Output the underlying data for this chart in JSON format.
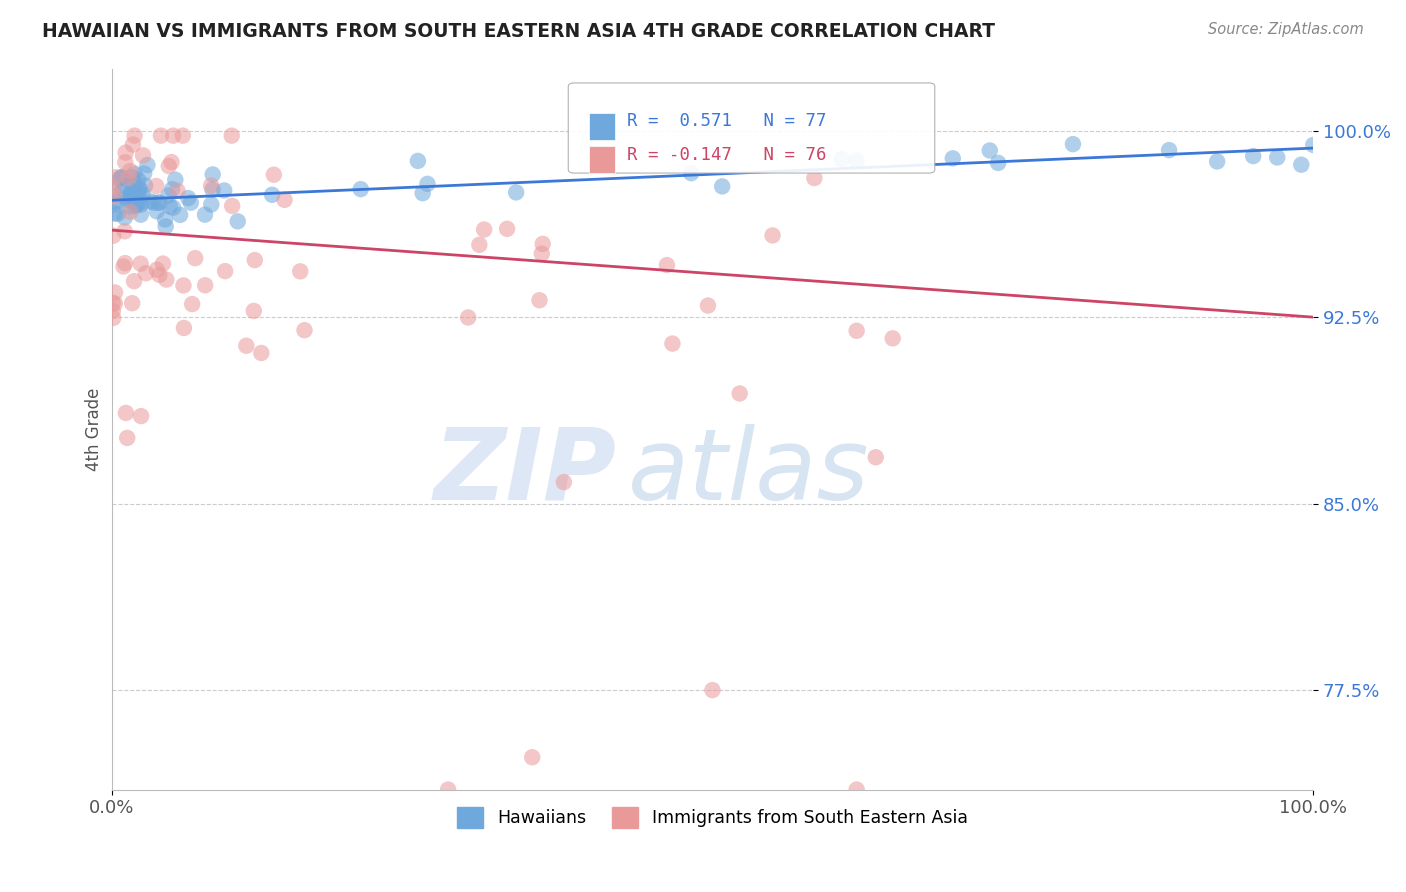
{
  "title": "HAWAIIAN VS IMMIGRANTS FROM SOUTH EASTERN ASIA 4TH GRADE CORRELATION CHART",
  "source_text": "Source: ZipAtlas.com",
  "ylabel": "4th Grade",
  "xlim": [
    0.0,
    1.0
  ],
  "ylim": [
    0.735,
    1.025
  ],
  "yticks": [
    0.775,
    0.85,
    0.925,
    1.0
  ],
  "ytick_labels": [
    "77.5%",
    "85.0%",
    "92.5%",
    "100.0%"
  ],
  "xticks": [
    0.0,
    1.0
  ],
  "xtick_labels": [
    "0.0%",
    "100.0%"
  ],
  "blue_color": "#6fa8dc",
  "pink_color": "#ea9999",
  "blue_line_color": "#3c78d8",
  "pink_line_color": "#cc4466",
  "legend_blue_label": "Hawaiians",
  "legend_pink_label": "Immigrants from South Eastern Asia",
  "R_blue": 0.571,
  "N_blue": 77,
  "R_pink": -0.147,
  "N_pink": 76,
  "watermark_zip": "ZIP",
  "watermark_atlas": "atlas",
  "background_color": "#ffffff",
  "grid_color": "#cccccc",
  "title_color": "#222222",
  "source_color": "#888888",
  "ylabel_color": "#555555",
  "ytick_color": "#3c78d8",
  "blue_trend_start_y": 0.972,
  "blue_trend_end_y": 0.993,
  "pink_trend_start_y": 0.96,
  "pink_trend_end_y": 0.925
}
